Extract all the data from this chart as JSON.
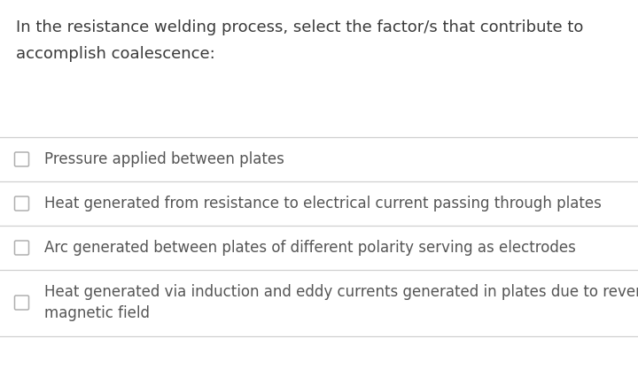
{
  "background_color": "#ffffff",
  "question_text_line1": "In the resistance welding process, select the factor/s that contribute to",
  "question_text_line2": "accomplish coalescence:",
  "question_font_size": 13.0,
  "question_color": "#3a3a3a",
  "options": [
    "Pressure applied between plates",
    "Heat generated from resistance to electrical current passing through plates",
    "Arc generated between plates of different polarity serving as electrodes",
    "Heat generated via induction and eddy currents generated in plates due to reversing\nmagnetic field"
  ],
  "option_font_size": 12.0,
  "option_color": "#555555",
  "divider_color": "#d0d0d0",
  "checkbox_edge_color": "#b0b0b0",
  "fig_width": 7.2,
  "fig_height": 4.17
}
